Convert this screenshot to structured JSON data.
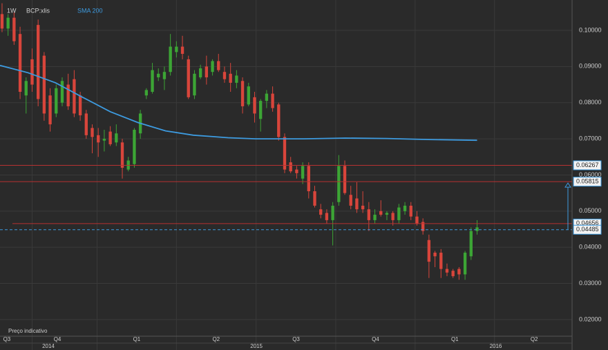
{
  "chart_data": {
    "type": "candlestick",
    "interval": "1W",
    "symbol": "BCP:xlis",
    "footnote": "Preço indicativo",
    "up_color": "#3ca535",
    "down_color": "#d8453b",
    "candles": [
      [
        0.1045,
        0.1075,
        0.0995,
        0.1005
      ],
      [
        0.1005,
        0.1045,
        0.0985,
        0.1035
      ],
      [
        0.1035,
        0.105,
        0.096,
        0.097
      ],
      [
        0.099,
        0.101,
        0.081,
        0.083
      ],
      [
        0.082,
        0.087,
        0.077,
        0.086
      ],
      [
        0.092,
        0.095,
        0.083,
        0.085
      ],
      [
        0.1015,
        0.103,
        0.079,
        0.081
      ],
      [
        0.093,
        0.094,
        0.075,
        0.077
      ],
      [
        0.082,
        0.084,
        0.072,
        0.074
      ],
      [
        0.077,
        0.085,
        0.076,
        0.084
      ],
      [
        0.08,
        0.087,
        0.079,
        0.086
      ],
      [
        0.085,
        0.088,
        0.078,
        0.079
      ],
      [
        0.0865,
        0.089,
        0.076,
        0.077
      ],
      [
        0.082,
        0.083,
        0.075,
        0.0765
      ],
      [
        0.077,
        0.078,
        0.07,
        0.071
      ],
      [
        0.073,
        0.074,
        0.066,
        0.0705
      ],
      [
        0.071,
        0.073,
        0.065,
        0.069
      ],
      [
        0.0695,
        0.0725,
        0.0665,
        0.07
      ],
      [
        0.072,
        0.0735,
        0.068,
        0.0685
      ],
      [
        0.069,
        0.074,
        0.068,
        0.0715
      ],
      [
        0.069,
        0.07,
        0.059,
        0.062
      ],
      [
        0.0615,
        0.065,
        0.061,
        0.064
      ],
      [
        0.063,
        0.073,
        0.062,
        0.0725
      ],
      [
        0.0715,
        0.078,
        0.07,
        0.077
      ],
      [
        0.082,
        0.084,
        0.081,
        0.0835
      ],
      [
        0.083,
        0.091,
        0.0825,
        0.089
      ],
      [
        0.087,
        0.0895,
        0.086,
        0.088
      ],
      [
        0.0865,
        0.09,
        0.0835,
        0.0885
      ],
      [
        0.0885,
        0.099,
        0.0875,
        0.0955
      ],
      [
        0.094,
        0.097,
        0.0925,
        0.0955
      ],
      [
        0.0955,
        0.0985,
        0.092,
        0.0935
      ],
      [
        0.092,
        0.093,
        0.081,
        0.0815
      ],
      [
        0.082,
        0.089,
        0.081,
        0.088
      ],
      [
        0.087,
        0.0905,
        0.0865,
        0.0895
      ],
      [
        0.09,
        0.093,
        0.085,
        0.087
      ],
      [
        0.0885,
        0.092,
        0.0875,
        0.0915
      ],
      [
        0.0915,
        0.0935,
        0.0885,
        0.089
      ],
      [
        0.0885,
        0.09,
        0.0855,
        0.0865
      ],
      [
        0.088,
        0.091,
        0.083,
        0.0855
      ],
      [
        0.0855,
        0.089,
        0.084,
        0.0875
      ],
      [
        0.086,
        0.087,
        0.077,
        0.079
      ],
      [
        0.0795,
        0.0855,
        0.079,
        0.0845
      ],
      [
        0.0815,
        0.083,
        0.0745,
        0.077
      ],
      [
        0.0755,
        0.081,
        0.072,
        0.0805
      ],
      [
        0.0805,
        0.0835,
        0.0785,
        0.0825
      ],
      [
        0.0825,
        0.0845,
        0.0775,
        0.0785
      ],
      [
        0.0795,
        0.08,
        0.0695,
        0.0705
      ],
      [
        0.0705,
        0.0715,
        0.0605,
        0.0615
      ],
      [
        0.0635,
        0.065,
        0.0605,
        0.061
      ],
      [
        0.0615,
        0.0625,
        0.059,
        0.0605
      ],
      [
        0.059,
        0.0635,
        0.0575,
        0.0625
      ],
      [
        0.0625,
        0.0635,
        0.0535,
        0.0555
      ],
      [
        0.0555,
        0.057,
        0.051,
        0.0515
      ],
      [
        0.0505,
        0.052,
        0.048,
        0.049
      ],
      [
        0.0495,
        0.0505,
        0.0465,
        0.0475
      ],
      [
        0.0475,
        0.0525,
        0.0405,
        0.0515
      ],
      [
        0.0525,
        0.0655,
        0.0515,
        0.0625
      ],
      [
        0.0625,
        0.064,
        0.0545,
        0.055
      ],
      [
        0.0545,
        0.057,
        0.0505,
        0.0515
      ],
      [
        0.0535,
        0.058,
        0.0495,
        0.0505
      ],
      [
        0.0515,
        0.0555,
        0.0495,
        0.0505
      ],
      [
        0.0505,
        0.0525,
        0.0445,
        0.0475
      ],
      [
        0.0475,
        0.0505,
        0.0465,
        0.049
      ],
      [
        0.05,
        0.053,
        0.0485,
        0.049
      ],
      [
        0.049,
        0.05,
        0.0475,
        0.0495
      ],
      [
        0.0495,
        0.05,
        0.046,
        0.0475
      ],
      [
        0.0475,
        0.052,
        0.0465,
        0.051
      ],
      [
        0.05,
        0.0525,
        0.049,
        0.0515
      ],
      [
        0.0515,
        0.0525,
        0.0475,
        0.0485
      ],
      [
        0.0485,
        0.05,
        0.046,
        0.0465
      ],
      [
        0.047,
        0.048,
        0.0435,
        0.0445
      ],
      [
        0.042,
        0.0435,
        0.0315,
        0.036
      ],
      [
        0.0385,
        0.039,
        0.0345,
        0.0375
      ],
      [
        0.0385,
        0.0395,
        0.0315,
        0.034
      ],
      [
        0.034,
        0.0355,
        0.032,
        0.033
      ],
      [
        0.0335,
        0.034,
        0.0315,
        0.032
      ],
      [
        0.034,
        0.0345,
        0.031,
        0.0325
      ],
      [
        0.0325,
        0.039,
        0.031,
        0.0385
      ],
      [
        0.0375,
        0.0455,
        0.0365,
        0.0445
      ],
      [
        0.0445,
        0.0475,
        0.0435,
        0.0455
      ]
    ],
    "sma": {
      "name": "SMA 200",
      "color": "#3d9be0",
      "x": [
        -0.34,
        4.3,
        8.9,
        13.4,
        18,
        22.6,
        27.2,
        31.8,
        37.6,
        42.2,
        50.2,
        57.1,
        64,
        70.9,
        79
      ],
      "values": [
        0.0903,
        0.0883,
        0.0855,
        0.0815,
        0.0775,
        0.0745,
        0.0722,
        0.071,
        0.0703,
        0.07,
        0.07,
        0.0702,
        0.0701,
        0.0698,
        0.0696
      ]
    },
    "hlines": [
      {
        "value": 0.06267,
        "color": "#b83232",
        "style": "solid"
      },
      {
        "value": 0.05815,
        "color": "#b83232",
        "style": "solid"
      },
      {
        "value": 0.04656,
        "color": "#b83232",
        "style": "solid"
      },
      {
        "value": 0.04485,
        "color": "#3d9be0",
        "style": "dashed"
      }
    ],
    "xlim": [
      -0.34,
      94.8
    ],
    "xticks": [
      {
        "value": 0.8,
        "label": "Q3"
      },
      {
        "value": 9.2,
        "label": "Q4"
      },
      {
        "value": 22.4,
        "label": "Q1"
      },
      {
        "value": 35.6,
        "label": "Q2"
      },
      {
        "value": 48.9,
        "label": "Q3"
      },
      {
        "value": 62.1,
        "label": "Q4"
      },
      {
        "value": 75.3,
        "label": "Q1"
      },
      {
        "value": 88.5,
        "label": "Q2"
      }
    ],
    "year_ticks": [
      {
        "value": 7.7,
        "label": "2014"
      },
      {
        "value": 42.3,
        "label": "2015"
      },
      {
        "value": 82.1,
        "label": "2016"
      }
    ],
    "ylim": [
      0.0154,
      0.1084
    ],
    "yticks": [
      {
        "value": 0.1,
        "label": "0.10000"
      },
      {
        "value": 0.09,
        "label": "0.09000"
      },
      {
        "value": 0.08,
        "label": "0.08000"
      },
      {
        "value": 0.07,
        "label": "0.07000"
      },
      {
        "value": 0.06,
        "label": "0.06000"
      },
      {
        "value": 0.05,
        "label": "0.05000"
      },
      {
        "value": 0.04,
        "label": "0.04000"
      },
      {
        "value": 0.03,
        "label": "0.03000"
      },
      {
        "value": 0.02,
        "label": "0.02000"
      }
    ],
    "grid": true
  }
}
